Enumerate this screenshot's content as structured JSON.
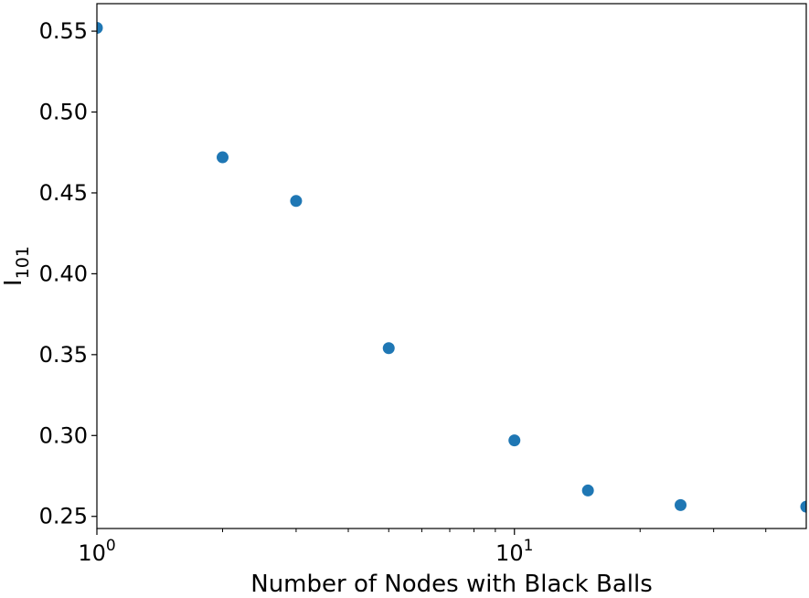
{
  "chart_data": {
    "type": "scatter",
    "x_scale": "log",
    "xlabel": "Number of Nodes with Black Balls",
    "ylabel": {
      "base": "I",
      "subscript": "101"
    },
    "xlim": [
      1,
      50
    ],
    "ylim": [
      0.2425,
      0.567
    ],
    "x_major_ticks": [
      {
        "value": 1,
        "base": "10",
        "exp": "0"
      },
      {
        "value": 10,
        "base": "10",
        "exp": "1"
      }
    ],
    "x_minor_ticks": [
      2,
      3,
      4,
      5,
      6,
      7,
      8,
      9,
      20,
      30,
      40
    ],
    "y_ticks": [
      {
        "value": 0.25,
        "label": "0.25"
      },
      {
        "value": 0.3,
        "label": "0.30"
      },
      {
        "value": 0.35,
        "label": "0.35"
      },
      {
        "value": 0.4,
        "label": "0.40"
      },
      {
        "value": 0.45,
        "label": "0.45"
      },
      {
        "value": 0.5,
        "label": "0.50"
      },
      {
        "value": 0.55,
        "label": "0.55"
      }
    ],
    "series": [
      {
        "color": "#1f77b4",
        "points": [
          {
            "x": 1,
            "y": 0.552
          },
          {
            "x": 2,
            "y": 0.472
          },
          {
            "x": 3,
            "y": 0.445
          },
          {
            "x": 5,
            "y": 0.354
          },
          {
            "x": 10,
            "y": 0.297
          },
          {
            "x": 15,
            "y": 0.266
          },
          {
            "x": 25,
            "y": 0.257
          },
          {
            "x": 50,
            "y": 0.256
          }
        ]
      }
    ],
    "grid": false,
    "legend": "none"
  }
}
